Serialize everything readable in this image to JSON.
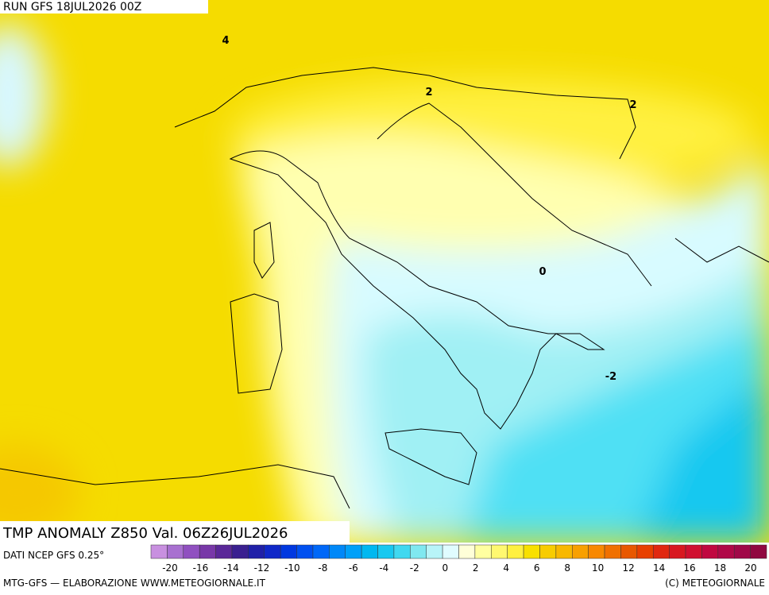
{
  "header": {
    "run": "RUN GFS 18JUL2026 00Z"
  },
  "map": {
    "title": "TMP ANOMALY Z850 Val. 06Z26JUL2026",
    "source": "DATI NCEP GFS 0.25°",
    "contour_labels": [
      4,
      2,
      2,
      0,
      -2
    ]
  },
  "colorbar": {
    "ticks": [
      -20,
      -16,
      -14,
      -12,
      -10,
      -8,
      -6,
      -4,
      -2,
      0,
      2,
      4,
      6,
      8,
      10,
      12,
      14,
      16,
      18,
      20
    ],
    "colors": [
      "#c890e0",
      "#a870d0",
      "#9050c0",
      "#7838a8",
      "#5a2898",
      "#3a2090",
      "#2020a8",
      "#1028c8",
      "#0038e0",
      "#0050f0",
      "#0068f8",
      "#0088f8",
      "#00a0f8",
      "#00b8f0",
      "#18c8f0",
      "#40d8f0",
      "#80e8f0",
      "#b8f4f8",
      "#e0fcff",
      "#ffffd8",
      "#ffffa0",
      "#fff870",
      "#fff040",
      "#f8e000",
      "#f8cc00",
      "#f8b800",
      "#f8a000",
      "#f88800",
      "#f07000",
      "#e85800",
      "#e84000",
      "#e02810",
      "#d81820",
      "#d01030",
      "#c00840",
      "#b00848",
      "#a00848",
      "#900840"
    ]
  },
  "footer": {
    "left": "MTG-GFS — ELABORAZIONE WWW.METEOGIORNALE.IT",
    "right": "(C) METEOGIORNALE"
  }
}
